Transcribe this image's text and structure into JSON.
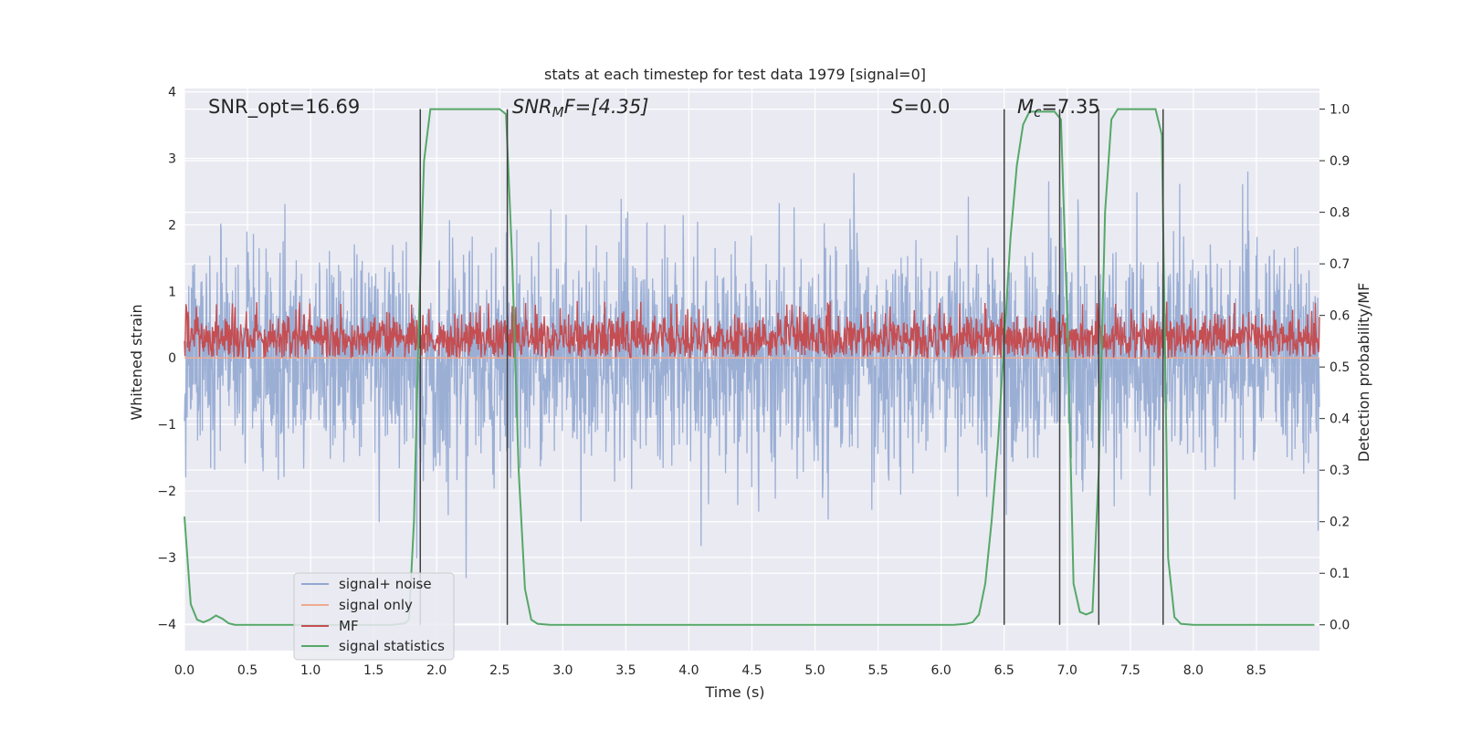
{
  "chart_data": {
    "type": "line",
    "title": "stats at each timestep for test data 1979 [signal=0]",
    "xlabel": "Time (s)",
    "ylabel_left": "Whitened strain",
    "ylabel_right": "Detection probability/MF",
    "xlim": [
      0.0,
      9.0
    ],
    "ylim_left": [
      -4.4,
      4.05
    ],
    "ylim_right": [
      -0.05,
      1.04
    ],
    "xticks": [
      0.0,
      0.5,
      1.0,
      1.5,
      2.0,
      2.5,
      3.0,
      3.5,
      4.0,
      4.5,
      5.0,
      5.5,
      6.0,
      6.5,
      7.0,
      7.5,
      8.0,
      8.5
    ],
    "xtick_labels": [
      "0.0",
      "0.5",
      "1.0",
      "1.5",
      "2.0",
      "2.5",
      "3.0",
      "3.5",
      "4.0",
      "4.5",
      "5.0",
      "5.5",
      "6.0",
      "6.5",
      "7.0",
      "7.5",
      "8.0",
      "8.5"
    ],
    "yticks_left": [
      -4,
      -3,
      -2,
      -1,
      0,
      1,
      2,
      3,
      4
    ],
    "ytick_labels_left": [
      "−4",
      "−3",
      "−2",
      "−1",
      "0",
      "1",
      "2",
      "3",
      "4"
    ],
    "yticks_right": [
      0.0,
      0.1,
      0.2,
      0.3,
      0.4,
      0.5,
      0.6,
      0.7,
      0.8,
      0.9,
      1.0
    ],
    "ytick_labels_right": [
      "0.0",
      "0.1",
      "0.2",
      "0.3",
      "0.4",
      "0.5",
      "0.6",
      "0.7",
      "0.8",
      "0.9",
      "1.0"
    ],
    "grid": true,
    "legend_position": "lower-left",
    "annotations": {
      "snr_opt": "SNR_opt=16.69",
      "snr_mf_main": "SNR",
      "snr_mf_sub": "M",
      "snr_mf_rest": "F=[4.35]",
      "s_label": "S",
      "s_rest": "=0.0",
      "mc_label": "M",
      "mc_sub": "c",
      "mc_rest": "=7.35"
    },
    "series": [
      {
        "name": "signal+ noise",
        "color": "#92a8d1",
        "axis": "left",
        "kind": "noise",
        "envelope_std": 0.85
      },
      {
        "name": "signal only",
        "color": "#eeaa90",
        "axis": "left",
        "kind": "flat",
        "value": 0.0
      },
      {
        "name": "MF",
        "color": "#c44e52",
        "axis": "left",
        "kind": "mf",
        "range": [
          0.0,
          0.9
        ]
      },
      {
        "name": "signal statistics",
        "color": "#55a868",
        "axis": "right",
        "x": [
          0.0,
          0.05,
          0.1,
          0.15,
          0.2,
          0.25,
          0.3,
          0.35,
          0.4,
          0.45,
          0.5,
          0.9,
          1.2,
          1.5,
          1.65,
          1.75,
          1.78,
          1.82,
          1.86,
          1.9,
          1.95,
          2.0,
          2.2,
          2.4,
          2.5,
          2.55,
          2.6,
          2.65,
          2.7,
          2.75,
          2.8,
          2.9,
          3.5,
          5.0,
          6.0,
          6.1,
          6.2,
          6.25,
          6.3,
          6.35,
          6.4,
          6.45,
          6.5,
          6.55,
          6.6,
          6.65,
          6.7,
          6.9,
          6.95,
          7.0,
          7.05,
          7.1,
          7.15,
          7.2,
          7.25,
          7.3,
          7.35,
          7.4,
          7.5,
          7.7,
          7.75,
          7.8,
          7.85,
          7.9,
          8.0,
          8.5,
          8.96
        ],
        "y": [
          0.21,
          0.04,
          0.01,
          0.005,
          0.01,
          0.018,
          0.012,
          0.003,
          0.0,
          0.0,
          0.0,
          0.0,
          0.0,
          0.0,
          0.0,
          0.003,
          0.01,
          0.2,
          0.6,
          0.9,
          1.0,
          1.0,
          1.0,
          1.0,
          1.0,
          0.99,
          0.7,
          0.3,
          0.07,
          0.01,
          0.002,
          0.0,
          0.0,
          0.0,
          0.0,
          0.0,
          0.002,
          0.005,
          0.02,
          0.08,
          0.2,
          0.35,
          0.55,
          0.75,
          0.89,
          0.97,
          0.995,
          0.995,
          0.98,
          0.6,
          0.08,
          0.025,
          0.02,
          0.025,
          0.3,
          0.8,
          0.98,
          1.0,
          1.0,
          1.0,
          0.95,
          0.13,
          0.015,
          0.002,
          0.0,
          0.0,
          0.0
        ]
      }
    ],
    "vertical_lines_x": [
      1.87,
      2.56,
      6.5,
      6.94,
      7.25,
      7.76
    ],
    "vertical_lines_color": "#404040"
  }
}
